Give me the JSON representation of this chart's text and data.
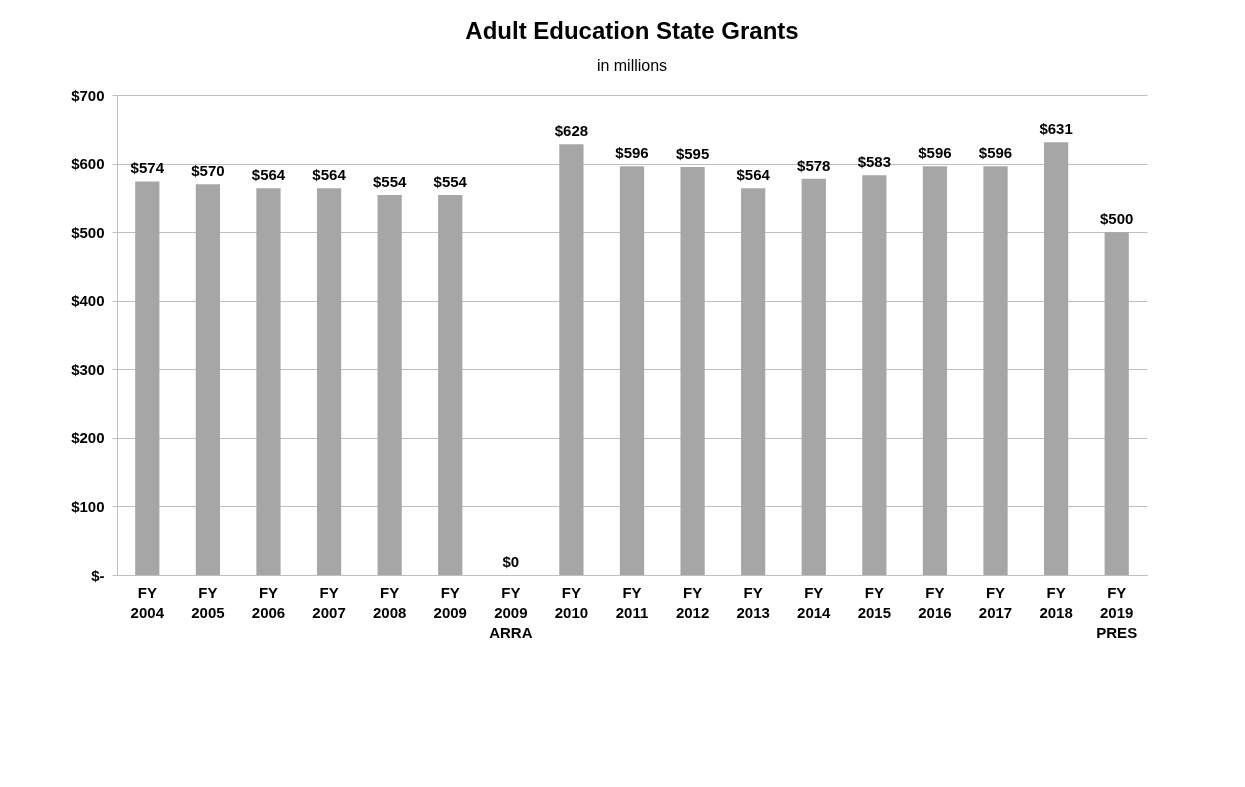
{
  "chart_data": {
    "type": "bar",
    "title": "Adult Education State Grants",
    "subtitle": "in millions",
    "categories": [
      "FY 2004",
      "FY 2005",
      "FY 2006",
      "FY 2007",
      "FY 2008",
      "FY 2009",
      "FY 2009 ARRA",
      "FY 2010",
      "FY 2011",
      "FY 2012",
      "FY 2013",
      "FY 2014",
      "FY 2015",
      "FY 2016",
      "FY 2017",
      "FY 2018",
      "FY 2019 PRES"
    ],
    "values": [
      574,
      570,
      564,
      564,
      554,
      554,
      0,
      628,
      596,
      595,
      564,
      578,
      583,
      596,
      596,
      631,
      500
    ],
    "value_labels": [
      "$574",
      "$570",
      "$564",
      "$564",
      "$554",
      "$554",
      "$0",
      "$628",
      "$596",
      "$595",
      "$564",
      "$578",
      "$583",
      "$596",
      "$596",
      "$631",
      "$500"
    ],
    "color": "#a6a6a6",
    "ylim": [
      0,
      700
    ],
    "yticks": [
      {
        "value": 0,
        "label": "$-"
      },
      {
        "value": 100,
        "label": "$100"
      },
      {
        "value": 200,
        "label": "$200"
      },
      {
        "value": 300,
        "label": "$300"
      },
      {
        "value": 400,
        "label": "$400"
      },
      {
        "value": 500,
        "label": "$500"
      },
      {
        "value": 600,
        "label": "$600"
      },
      {
        "value": 700,
        "label": "$700"
      }
    ],
    "grid": "y"
  }
}
